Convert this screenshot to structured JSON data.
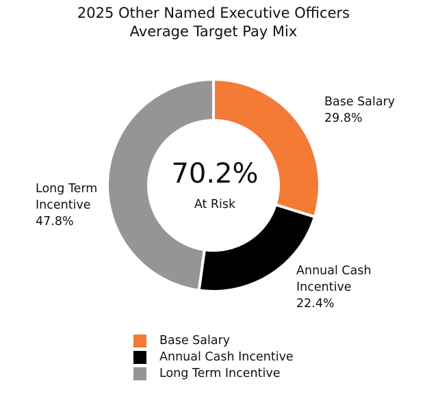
{
  "chart_data": {
    "type": "pie",
    "style": "donut",
    "title": [
      "2025 Other Named Executive Officers",
      "Average Target Pay Mix"
    ],
    "slices": [
      {
        "name": "Base Salary",
        "label_lines": [
          "Base Salary"
        ],
        "value": 29.8,
        "value_label": "29.8%",
        "color": "#F47B35"
      },
      {
        "name": "Annual Cash Incentive",
        "label_lines": [
          "Annual Cash",
          "Incentive"
        ],
        "value": 22.4,
        "value_label": "22.4%",
        "color": "#000000"
      },
      {
        "name": "Long Term Incentive",
        "label_lines": [
          "Long Term",
          "Incentive"
        ],
        "value": 47.8,
        "value_label": "47.8%",
        "color": "#959595"
      }
    ],
    "center": {
      "value": "70.2%",
      "caption": "At Risk"
    },
    "legend": [
      {
        "label": "Base Salary",
        "color": "#F47B35"
      },
      {
        "label": "Annual Cash Incentive",
        "color": "#000000"
      },
      {
        "label": "Long Term Incentive",
        "color": "#959595"
      }
    ],
    "legend_position": "bottom"
  }
}
